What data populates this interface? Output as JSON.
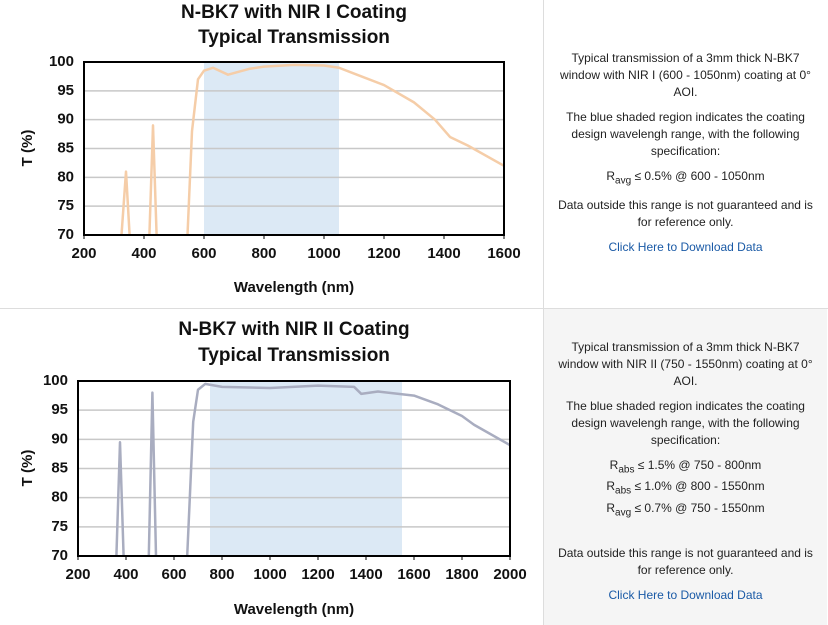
{
  "chart_data": [
    {
      "type": "line",
      "title": "N-BK7 with NIR I Coating",
      "subtitle": "Typical Transmission",
      "xlabel": "Wavelength (nm)",
      "ylabel": "T (%)",
      "color": "#f5cda8",
      "shade_color": "#dce9f5",
      "shaded_range": [
        600,
        1050
      ],
      "x": [
        325,
        340,
        352,
        380,
        418,
        430,
        442,
        490,
        545,
        560,
        580,
        600,
        630,
        680,
        750,
        800,
        900,
        1000,
        1050,
        1100,
        1200,
        1300,
        1370,
        1420,
        1480,
        1600
      ],
      "values": [
        70,
        81,
        70,
        null,
        70,
        89,
        70,
        null,
        70,
        88,
        97,
        98.5,
        99,
        97.8,
        98.8,
        99.2,
        99.5,
        99.4,
        99,
        98,
        96,
        93,
        90,
        87,
        85.5,
        82
      ],
      "xlim": [
        200,
        1600
      ],
      "xticks": [
        200,
        400,
        600,
        800,
        1000,
        1200,
        1400,
        1600
      ],
      "ylim": [
        70,
        100
      ],
      "yticks": [
        70,
        75,
        80,
        85,
        90,
        95,
        100
      ],
      "grid": true
    },
    {
      "type": "line",
      "title": "N-BK7 with NIR II Coating",
      "subtitle": "Typical Transmission",
      "xlabel": "Wavelength (nm)",
      "ylabel": "T (%)",
      "color": "#a9adc0",
      "shade_color": "#dce9f5",
      "shaded_range": [
        750,
        1550
      ],
      "x": [
        360,
        375,
        390,
        450,
        495,
        510,
        525,
        590,
        655,
        680,
        700,
        730,
        800,
        1000,
        1200,
        1350,
        1380,
        1450,
        1600,
        1700,
        1800,
        1850,
        2000
      ],
      "values": [
        70,
        89.5,
        70,
        null,
        70,
        98,
        70,
        null,
        70,
        93,
        98.5,
        99.5,
        99,
        98.8,
        99.2,
        99,
        97.8,
        98.2,
        97.5,
        96,
        94,
        92.5,
        89
      ],
      "xlim": [
        200,
        2000
      ],
      "xticks": [
        200,
        400,
        600,
        800,
        1000,
        1200,
        1400,
        1600,
        1800,
        2000
      ],
      "ylim": [
        70,
        100
      ],
      "yticks": [
        70,
        75,
        80,
        85,
        90,
        95,
        100
      ],
      "grid": true
    }
  ],
  "panels": [
    {
      "paragraphs": [
        "Typical transmission of a 3mm thick N-BK7 window with NIR I (600 - 1050nm) coating at 0° AOI.",
        "The blue shaded region indicates the coating design wavelengh range, with the following specification:"
      ],
      "spec": [
        {
          "symbol": "R",
          "subscript": "avg",
          "text": " ≤ 0.5% @ 600 - 1050nm"
        }
      ],
      "note": "Data outside this range is not guaranteed and is for reference only.",
      "link": "Click Here to Download Data"
    },
    {
      "paragraphs": [
        "Typical transmission of a 3mm thick N-BK7 window with NIR II (750 - 1550nm) coating at 0° AOI.",
        "The blue shaded region indicates the coating design wavelengh range, with the following specification:"
      ],
      "spec": [
        {
          "symbol": "R",
          "subscript": "abs",
          "text": " ≤ 1.5% @ 750 - 800nm"
        },
        {
          "symbol": "R",
          "subscript": "abs",
          "text": " ≤ 1.0% @ 800 - 1550nm"
        },
        {
          "symbol": "R",
          "subscript": "avg",
          "text": " ≤ 0.7% @ 750 - 1550nm"
        }
      ],
      "note": "Data outside this range is not guaranteed and is for reference only.",
      "link": "Click Here to Download Data"
    }
  ]
}
